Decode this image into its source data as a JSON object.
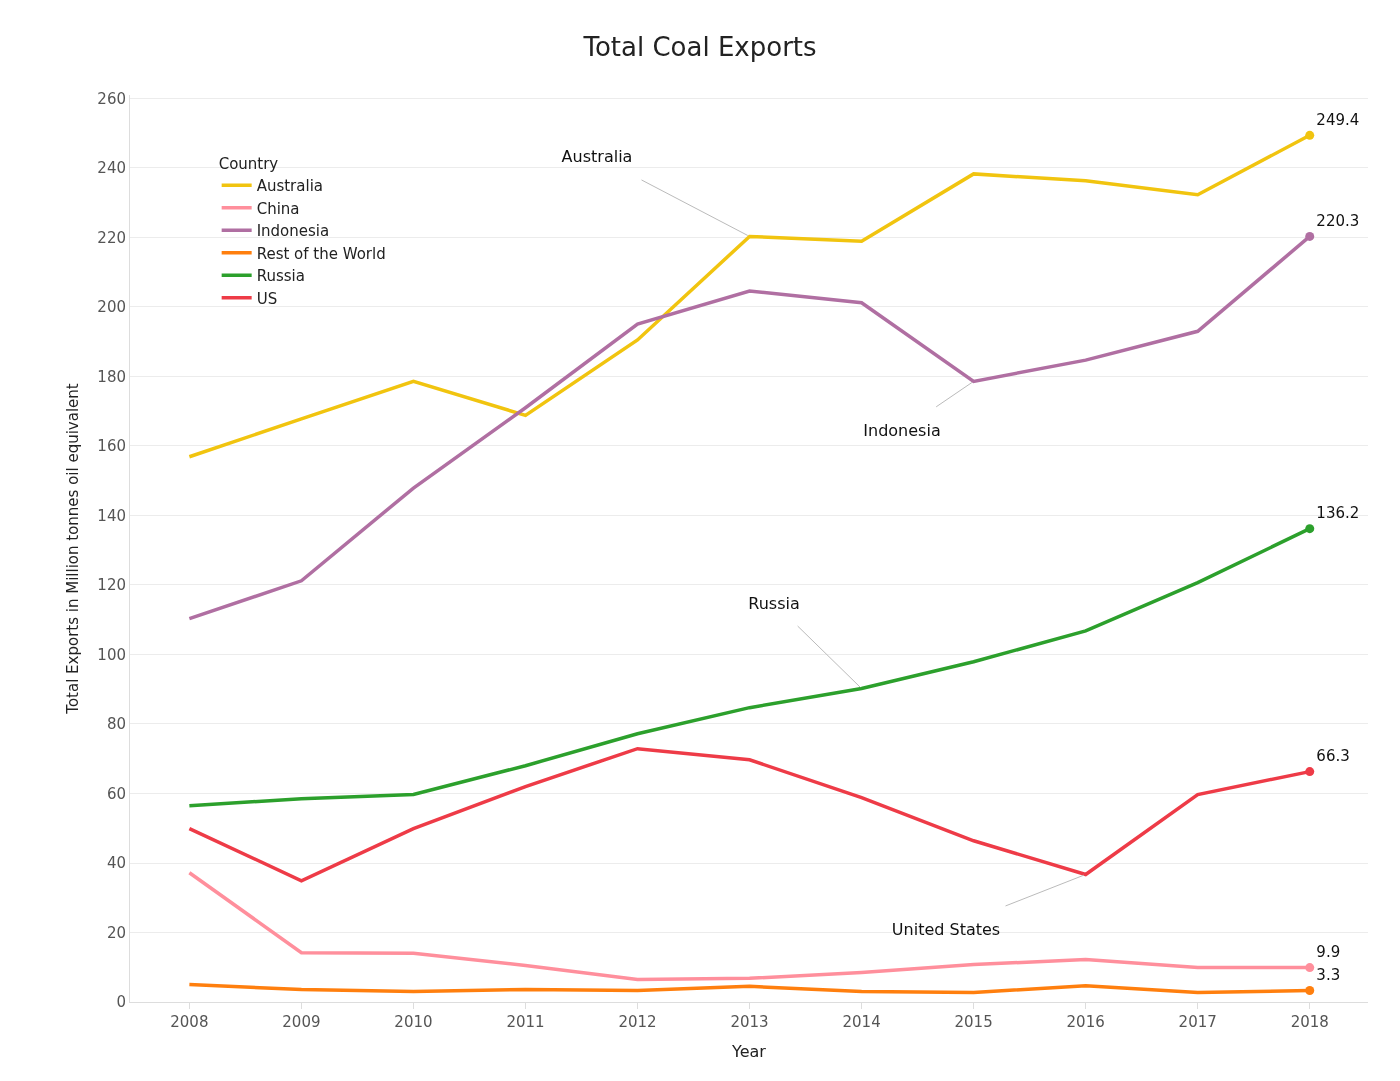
{
  "chart_data": {
    "type": "line",
    "title": "Total Coal Exports",
    "xlabel": "Year",
    "ylabel": "Total Exports in Million tonnes oil equivalent",
    "legend_title": "Country",
    "x": [
      2008,
      2009,
      2010,
      2011,
      2012,
      2013,
      2014,
      2015,
      2016,
      2017,
      2018
    ],
    "series": [
      {
        "name": "Australia",
        "color": "#f1c40f",
        "values": [
          156.9,
          167.8,
          178.6,
          168.8,
          190.5,
          220.3,
          218.9,
          238.3,
          236.3,
          232.3,
          249.4
        ],
        "value_labels": [
          null,
          null,
          null,
          null,
          null,
          null,
          null,
          null,
          null,
          null,
          "249.4"
        ]
      },
      {
        "name": "China",
        "color": "#ff8f9c",
        "values": [
          37.2,
          14.2,
          14.0,
          10.5,
          6.5,
          6.8,
          8.5,
          10.8,
          12.2,
          9.9,
          9.9
        ],
        "value_labels": [
          null,
          null,
          null,
          null,
          null,
          null,
          null,
          null,
          null,
          null,
          "9.9"
        ]
      },
      {
        "name": "Indonesia",
        "color": "#b06fa2",
        "values": [
          110.3,
          121.2,
          147.9,
          171.0,
          195.1,
          204.6,
          201.2,
          178.6,
          184.7,
          193.0,
          220.3
        ],
        "value_labels": [
          null,
          null,
          null,
          null,
          null,
          null,
          null,
          null,
          null,
          null,
          "220.3"
        ]
      },
      {
        "name": "Rest of the World",
        "color": "#ff7f0e",
        "values": [
          5.0,
          3.6,
          3.0,
          3.6,
          3.3,
          4.5,
          3.0,
          2.7,
          4.7,
          2.7,
          3.3
        ],
        "value_labels": [
          null,
          null,
          null,
          null,
          null,
          null,
          null,
          null,
          null,
          null,
          "3.3"
        ]
      },
      {
        "name": "Russia",
        "color": "#2ca02c",
        "values": [
          56.5,
          58.5,
          59.7,
          68.0,
          77.2,
          84.7,
          90.2,
          97.9,
          106.8,
          120.7,
          136.2
        ],
        "value_labels": [
          null,
          null,
          null,
          null,
          null,
          null,
          null,
          null,
          null,
          null,
          "136.2"
        ]
      },
      {
        "name": "US",
        "color": "#ee3b47",
        "values": [
          49.9,
          34.9,
          49.9,
          62.0,
          72.9,
          69.7,
          58.8,
          46.4,
          36.7,
          59.7,
          66.3
        ],
        "value_labels": [
          null,
          null,
          null,
          null,
          null,
          null,
          null,
          null,
          null,
          null,
          "66.3"
        ]
      }
    ],
    "annotations": [
      {
        "text": "Australia",
        "x": 2013,
        "y": 220.3
      },
      {
        "text": "Indonesia",
        "x": 2015,
        "y": 178.6
      },
      {
        "text": "Russia",
        "x": 2014,
        "y": 90.2
      },
      {
        "text": "United States",
        "x": 2016,
        "y": 36.7
      }
    ],
    "xlim": [
      2007.47,
      2018.52
    ],
    "xticks": [
      2008,
      2009,
      2010,
      2011,
      2012,
      2013,
      2014,
      2015,
      2016,
      2017,
      2018
    ],
    "ylim": [
      0,
      261
    ],
    "yticks": [
      0,
      20,
      40,
      60,
      80,
      100,
      120,
      140,
      160,
      180,
      200,
      220,
      240,
      260
    ],
    "grid": "y",
    "legend": "top left"
  }
}
